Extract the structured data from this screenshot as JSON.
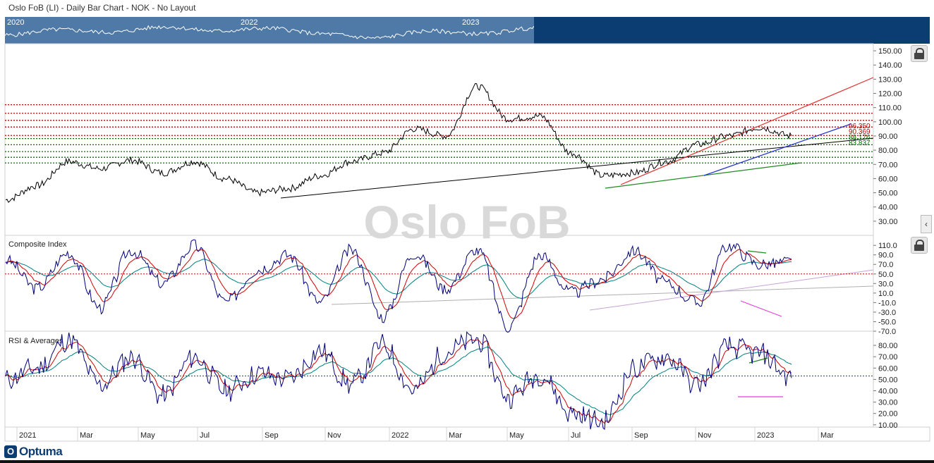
{
  "header": {
    "title": "Oslo FoB (LI) - Daily Bar Chart - NOK - No Layout"
  },
  "navigator": {
    "years": [
      "2020",
      "2022",
      "2023"
    ]
  },
  "watermark": "Oslo FoB",
  "brand": {
    "logo_text": "Optuma",
    "logo_mark": "O"
  },
  "colors": {
    "price": "#000000",
    "fast_ma": "#d00000",
    "slow_ma": "#008080",
    "indicator": "#00007a",
    "support": "#007000",
    "resistance": "#c00000"
  },
  "chart_data": [
    {
      "type": "line",
      "name": "price-panel",
      "title": "",
      "ylim": [
        20,
        155
      ],
      "yticks": [
        "150.00",
        "140.00",
        "130.00",
        "120.00",
        "110.00",
        "100.00",
        "90.00",
        "80.00",
        "70.00",
        "60.00",
        "50.00",
        "40.00",
        "30.00"
      ],
      "x": [
        "2021-01-01",
        "2021-02-01",
        "2021-03-01",
        "2021-04-01",
        "2021-05-01",
        "2021-06-01",
        "2021-07-01",
        "2021-08-01",
        "2021-09-01",
        "2021-10-01",
        "2021-11-01",
        "2021-12-01",
        "2022-01-01",
        "2022-02-01",
        "2022-03-01",
        "2022-04-01",
        "2022-05-01",
        "2022-06-01",
        "2022-07-01",
        "2022-08-01",
        "2022-09-01",
        "2022-10-01",
        "2022-11-01",
        "2022-12-01",
        "2023-01-01",
        "2023-02-01"
      ],
      "series": [
        {
          "values": [
            45,
            55,
            72,
            67,
            73,
            64,
            72,
            60,
            50,
            53,
            62,
            72,
            78,
            95,
            90,
            125,
            102,
            104,
            78,
            62,
            64,
            72,
            84,
            90,
            96,
            90
          ]
        }
      ],
      "horizontal_levels": [
        {
          "value": 112,
          "color": "red"
        },
        {
          "value": 106,
          "color": "red"
        },
        {
          "value": 101,
          "color": "red"
        },
        {
          "value": 96.35,
          "color": "red"
        },
        {
          "value": 90.369,
          "color": "red"
        },
        {
          "value": 88.2,
          "color": "green"
        },
        {
          "value": 83.837,
          "color": "green"
        },
        {
          "value": 79,
          "color": "green"
        },
        {
          "value": 75,
          "color": "green"
        },
        {
          "value": 71,
          "color": "green"
        }
      ],
      "level_labels": [
        {
          "text": "96.350",
          "color": "red"
        },
        {
          "text": "90.369",
          "color": "red"
        },
        {
          "text": "88.176",
          "color": "green"
        },
        {
          "text": "83.837",
          "color": "green"
        }
      ]
    },
    {
      "type": "line",
      "name": "composite-panel",
      "title": "Composite Index",
      "ylim": [
        -70,
        125
      ],
      "yticks": [
        "110.0",
        "90.0",
        "70.0",
        "50.0",
        "30.0",
        "10.0",
        "-10.0",
        "-30.0",
        "-50.0",
        "-70.0"
      ],
      "reference_level": 50,
      "series": [
        {
          "name": "",
          "values": [
            80,
            20,
            95,
            -20,
            100,
            30,
            110,
            -10,
            60,
            90,
            -10,
            100,
            -40,
            95,
            20,
            100,
            -60,
            90,
            10,
            40,
            100,
            30,
            -10,
            110,
            70,
            75
          ]
        }
      ]
    },
    {
      "type": "line",
      "name": "rsi-panel",
      "title": "RSI & Averages",
      "ylim": [
        8,
        90
      ],
      "yticks": [
        "80.00",
        "70.00",
        "60.00",
        "50.00",
        "40.00",
        "30.00",
        "20.00",
        "10.00"
      ],
      "reference_level": 53,
      "series": [
        {
          "name": "",
          "values": [
            50,
            60,
            85,
            45,
            70,
            35,
            70,
            40,
            55,
            50,
            75,
            45,
            80,
            40,
            75,
            85,
            35,
            55,
            20,
            12,
            60,
            70,
            45,
            78,
            72,
            52
          ]
        }
      ]
    }
  ],
  "x_axis": {
    "labels": [
      "2021",
      "Mar",
      "May",
      "Jul",
      "Sep",
      "Nov",
      "2022",
      "Mar",
      "May",
      "Jul",
      "Sep",
      "Nov",
      "2023",
      "Mar"
    ]
  }
}
